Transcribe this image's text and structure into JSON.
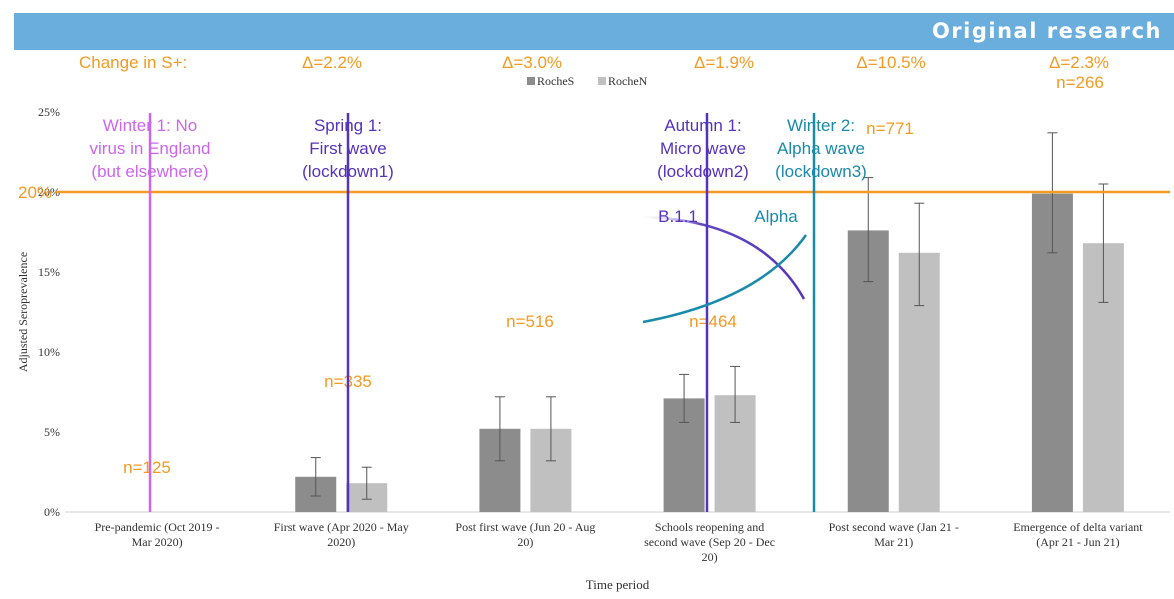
{
  "header": {
    "banner_label": "Original research"
  },
  "colors": {
    "rocheS": "#8c8c8c",
    "rocheN": "#c0c0c0",
    "orange": "#f39a21",
    "winter1": "#cc66ee",
    "spring1": "#5533bb",
    "autumn1": "#5533bb",
    "winter2": "#1a8aaa",
    "banner": "#6aaedd"
  },
  "chart_data": {
    "type": "bar",
    "xlabel": "Time period",
    "ylabel": "Adjusted Seroprevalence",
    "ylim": [
      0,
      25
    ],
    "yticks": [
      "0%",
      "5%",
      "10%",
      "15%",
      "20%",
      "25%"
    ],
    "categories": [
      [
        "Pre-pandemic (Oct 2019 -",
        "Mar 2020)"
      ],
      [
        "First wave (Apr 2020 - May",
        "2020)"
      ],
      [
        "Post first wave (Jun 20 - Aug",
        "20)"
      ],
      [
        "Schools reopening and",
        "second wave (Sep 20 - Dec",
        "20)"
      ],
      [
        "Post second wave (Jan 21 -",
        "Mar 21)"
      ],
      [
        "Emergence of delta variant",
        "(Apr 21 - Jun 21)"
      ]
    ],
    "legend": {
      "position": "top",
      "entries": [
        "RocheS",
        "RocheN"
      ]
    },
    "series": [
      {
        "name": "RocheS",
        "values": [
          null,
          2.2,
          5.2,
          7.1,
          17.6,
          19.9
        ],
        "err_low": [
          null,
          1.0,
          3.2,
          5.6,
          14.4,
          16.2
        ],
        "err_high": [
          null,
          3.4,
          7.2,
          8.6,
          20.9,
          23.7
        ]
      },
      {
        "name": "RocheN",
        "values": [
          null,
          1.8,
          5.2,
          7.3,
          16.2,
          16.8
        ],
        "err_low": [
          null,
          0.8,
          3.2,
          5.6,
          12.9,
          13.1
        ],
        "err_high": [
          null,
          2.8,
          7.2,
          9.1,
          19.3,
          20.5
        ]
      }
    ],
    "reference_line": {
      "value": 20,
      "label": "20%"
    },
    "change_label": "Change in S+:",
    "deltas": [
      "Δ=2.2%",
      "Δ=3.0%",
      "Δ=1.9%",
      "Δ=10.5%",
      "Δ=2.3%"
    ],
    "sample_sizes": [
      "n=125",
      "n=335",
      "n=516",
      "n=464",
      "n=771",
      "n=266"
    ],
    "period_annotations": [
      {
        "lines": [
          "Winter 1: No",
          "virus in England",
          "(but elsewhere)"
        ]
      },
      {
        "lines": [
          "Spring 1:",
          "First wave",
          "(lockdown1)"
        ]
      },
      {
        "lines": [
          "Autumn 1:",
          "Micro wave",
          "(lockdown2)"
        ]
      },
      {
        "lines": [
          "Winter 2:",
          "Alpha wave",
          "(lockdown3)"
        ]
      }
    ],
    "variant_curves": [
      {
        "label": "B.1.1",
        "trend": "declining"
      },
      {
        "label": "Alpha",
        "trend": "rising"
      }
    ]
  }
}
